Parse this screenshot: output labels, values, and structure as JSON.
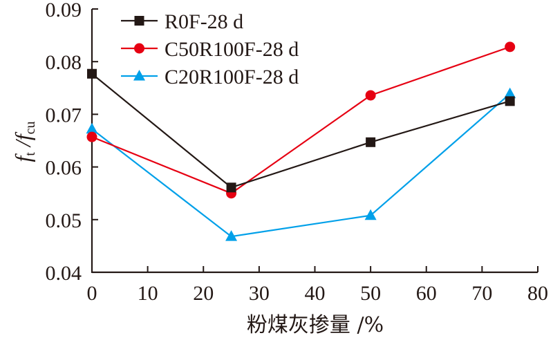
{
  "chart_data": {
    "type": "line",
    "title": "",
    "xlabel": "粉煤灰掺量 /%",
    "ylabel": {
      "f1": "f",
      "sub1": "t",
      "sep": " /",
      "f2": "f",
      "sub2": "cu"
    },
    "xlim": [
      0,
      80
    ],
    "ylim": [
      0.04,
      0.09
    ],
    "xticks": [
      "0",
      "10",
      "20",
      "30",
      "40",
      "50",
      "60",
      "70",
      "80"
    ],
    "yticks": [
      "0.04",
      "0.05",
      "0.06",
      "0.07",
      "0.08",
      "0.09"
    ],
    "grid": false,
    "legend_position": "top-left",
    "x": [
      0,
      25,
      50,
      75
    ],
    "series": [
      {
        "name": "R0F-28 d",
        "marker": "square",
        "color": "#231815",
        "values": [
          0.0777,
          0.0561,
          0.0647,
          0.0725
        ]
      },
      {
        "name": "C50R100F-28 d",
        "marker": "circle",
        "color": "#E60012",
        "values": [
          0.0657,
          0.055,
          0.0736,
          0.0828
        ]
      },
      {
        "name": "C20R100F-28 d",
        "marker": "triangle",
        "color": "#00A0E9",
        "values": [
          0.0672,
          0.0468,
          0.0508,
          0.0739
        ]
      }
    ]
  }
}
